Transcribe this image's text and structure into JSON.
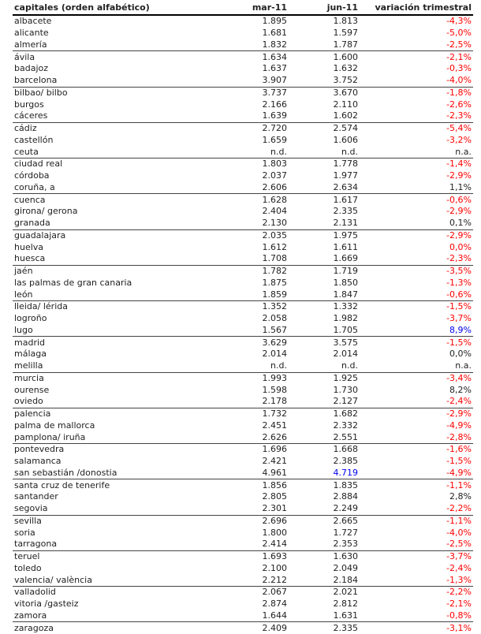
{
  "table": {
    "headers": [
      "capitales (orden alfabético)",
      "mar-11",
      "jun-11",
      "variación trimestral"
    ],
    "colors": {
      "negative": "#ff0000",
      "highlight": "#0000ee",
      "default": "#222222"
    },
    "rows": [
      {
        "city": "albacete",
        "mar": "1.895",
        "jun": "1.813",
        "var": "-4,3%",
        "var_color": "neg",
        "group_end": false
      },
      {
        "city": "alicante",
        "mar": "1.681",
        "jun": "1.597",
        "var": "-5,0%",
        "var_color": "neg",
        "group_end": false
      },
      {
        "city": "almería",
        "mar": "1.832",
        "jun": "1.787",
        "var": "-2,5%",
        "var_color": "neg",
        "group_end": true
      },
      {
        "city": "ávila",
        "mar": "1.634",
        "jun": "1.600",
        "var": "-2,1%",
        "var_color": "neg",
        "group_end": false
      },
      {
        "city": "badajoz",
        "mar": "1.637",
        "jun": "1.632",
        "var": "-0,3%",
        "var_color": "neg",
        "group_end": false
      },
      {
        "city": "barcelona",
        "mar": "3.907",
        "jun": "3.752",
        "var": "-4,0%",
        "var_color": "neg",
        "group_end": true
      },
      {
        "city": "bilbao/ bilbo",
        "mar": "3.737",
        "jun": "3.670",
        "var": "-1,8%",
        "var_color": "neg",
        "group_end": false
      },
      {
        "city": "burgos",
        "mar": "2.166",
        "jun": "2.110",
        "var": "-2,6%",
        "var_color": "neg",
        "group_end": false
      },
      {
        "city": "cáceres",
        "mar": "1.639",
        "jun": "1.602",
        "var": "-2,3%",
        "var_color": "neg",
        "group_end": true
      },
      {
        "city": "cádiz",
        "mar": "2.720",
        "jun": "2.574",
        "var": "-5,4%",
        "var_color": "neg",
        "group_end": false
      },
      {
        "city": "castellón",
        "mar": "1.659",
        "jun": "1.606",
        "var": "-3,2%",
        "var_color": "neg",
        "group_end": false
      },
      {
        "city": "ceuta",
        "mar": "n.d.",
        "jun": "n.d.",
        "var": "n.a.",
        "var_color": "pos",
        "group_end": true
      },
      {
        "city": "ciudad real",
        "mar": "1.803",
        "jun": "1.778",
        "var": "-1,4%",
        "var_color": "neg",
        "group_end": false
      },
      {
        "city": "córdoba",
        "mar": "2.037",
        "jun": "1.977",
        "var": "-2,9%",
        "var_color": "neg",
        "group_end": false
      },
      {
        "city": "coruña, a",
        "mar": "2.606",
        "jun": "2.634",
        "var": "1,1%",
        "var_color": "pos",
        "group_end": true
      },
      {
        "city": "cuenca",
        "mar": "1.628",
        "jun": "1.617",
        "var": "-0,6%",
        "var_color": "neg",
        "group_end": false
      },
      {
        "city": "girona/ gerona",
        "mar": "2.404",
        "jun": "2.335",
        "var": "-2,9%",
        "var_color": "neg",
        "group_end": false
      },
      {
        "city": "granada",
        "mar": "2.130",
        "jun": "2.131",
        "var": "0,1%",
        "var_color": "pos",
        "group_end": true
      },
      {
        "city": "guadalajara",
        "mar": "2.035",
        "jun": "1.975",
        "var": "-2,9%",
        "var_color": "neg",
        "group_end": false
      },
      {
        "city": "huelva",
        "mar": "1.612",
        "jun": "1.611",
        "var": "0,0%",
        "var_color": "neg",
        "group_end": false
      },
      {
        "city": "huesca",
        "mar": "1.708",
        "jun": "1.669",
        "var": "-2,3%",
        "var_color": "neg",
        "group_end": true
      },
      {
        "city": "jaén",
        "mar": "1.782",
        "jun": "1.719",
        "var": "-3,5%",
        "var_color": "neg",
        "group_end": false
      },
      {
        "city": "las palmas de gran canaria",
        "mar": "1.875",
        "jun": "1.850",
        "var": "-1,3%",
        "var_color": "neg",
        "group_end": false
      },
      {
        "city": "león",
        "mar": "1.859",
        "jun": "1.847",
        "var": "-0,6%",
        "var_color": "neg",
        "group_end": true
      },
      {
        "city": "lleida/ lérida",
        "mar": "1.352",
        "jun": "1.332",
        "var": "-1,5%",
        "var_color": "neg",
        "group_end": false
      },
      {
        "city": "logroño",
        "mar": "2.058",
        "jun": "1.982",
        "var": "-3,7%",
        "var_color": "neg",
        "group_end": false
      },
      {
        "city": "lugo",
        "mar": "1.567",
        "jun": "1.705",
        "var": "8,9%",
        "var_color": "blue",
        "group_end": true
      },
      {
        "city": "madrid",
        "mar": "3.629",
        "jun": "3.575",
        "var": "-1,5%",
        "var_color": "neg",
        "group_end": false
      },
      {
        "city": "málaga",
        "mar": "2.014",
        "jun": "2.014",
        "var": "0,0%",
        "var_color": "pos",
        "group_end": false
      },
      {
        "city": "melilla",
        "mar": "n.d.",
        "jun": "n.d.",
        "var": "n.a.",
        "var_color": "pos",
        "group_end": true
      },
      {
        "city": "murcia",
        "mar": "1.993",
        "jun": "1.925",
        "var": "-3,4%",
        "var_color": "neg",
        "group_end": false
      },
      {
        "city": "ourense",
        "mar": "1.598",
        "jun": "1.730",
        "var": "8,2%",
        "var_color": "pos",
        "group_end": false
      },
      {
        "city": "oviedo",
        "mar": "2.178",
        "jun": "2.127",
        "var": "-2,4%",
        "var_color": "neg",
        "group_end": true
      },
      {
        "city": "palencia",
        "mar": "1.732",
        "jun": "1.682",
        "var": "-2,9%",
        "var_color": "neg",
        "group_end": false
      },
      {
        "city": "palma de mallorca",
        "mar": "2.451",
        "jun": "2.332",
        "var": "-4,9%",
        "var_color": "neg",
        "group_end": false
      },
      {
        "city": "pamplona/ iruña",
        "mar": "2.626",
        "jun": "2.551",
        "var": "-2,8%",
        "var_color": "neg",
        "group_end": true
      },
      {
        "city": "pontevedra",
        "mar": "1.696",
        "jun": "1.668",
        "var": "-1,6%",
        "var_color": "neg",
        "group_end": false
      },
      {
        "city": "salamanca",
        "mar": "2.421",
        "jun": "2.385",
        "var": "-1,5%",
        "var_color": "neg",
        "group_end": false
      },
      {
        "city": "san sebastián /donostia",
        "mar": "4.961",
        "jun": "4.719",
        "var": "-4,9%",
        "var_color": "neg",
        "group_end": true,
        "mar_dark": true,
        "jun_color": "blue"
      },
      {
        "city": "santa cruz de tenerife",
        "mar": "1.856",
        "jun": "1.835",
        "var": "-1,1%",
        "var_color": "neg",
        "group_end": false
      },
      {
        "city": "santander",
        "mar": "2.805",
        "jun": "2.884",
        "var": "2,8%",
        "var_color": "pos",
        "group_end": false
      },
      {
        "city": "segovia",
        "mar": "2.301",
        "jun": "2.249",
        "var": "-2,2%",
        "var_color": "neg",
        "group_end": true
      },
      {
        "city": "sevilla",
        "mar": "2.696",
        "jun": "2.665",
        "var": "-1,1%",
        "var_color": "neg",
        "group_end": false
      },
      {
        "city": "soria",
        "mar": "1.800",
        "jun": "1.727",
        "var": "-4,0%",
        "var_color": "neg",
        "group_end": false
      },
      {
        "city": "tarragona",
        "mar": "2.414",
        "jun": "2.353",
        "var": "-2,5%",
        "var_color": "neg",
        "group_end": true
      },
      {
        "city": "teruel",
        "mar": "1.693",
        "jun": "1.630",
        "var": "-3,7%",
        "var_color": "neg",
        "group_end": false
      },
      {
        "city": "toledo",
        "mar": "2.100",
        "jun": "2.049",
        "var": "-2,4%",
        "var_color": "neg",
        "group_end": false
      },
      {
        "city": "valencia/ valència",
        "mar": "2.212",
        "jun": "2.184",
        "var": "-1,3%",
        "var_color": "neg",
        "group_end": true
      },
      {
        "city": "valladolid",
        "mar": "2.067",
        "jun": "2.021",
        "var": "-2,2%",
        "var_color": "neg",
        "group_end": false
      },
      {
        "city": "vitoria /gasteiz",
        "mar": "2.874",
        "jun": "2.812",
        "var": "-2,1%",
        "var_color": "neg",
        "group_end": false
      },
      {
        "city": "zamora",
        "mar": "1.644",
        "jun": "1.631",
        "var": "-0,8%",
        "var_color": "neg",
        "group_end": true
      },
      {
        "city": "zaragoza",
        "mar": "2.409",
        "jun": "2.335",
        "var": "-3,1%",
        "var_color": "neg",
        "group_end": false
      }
    ]
  }
}
